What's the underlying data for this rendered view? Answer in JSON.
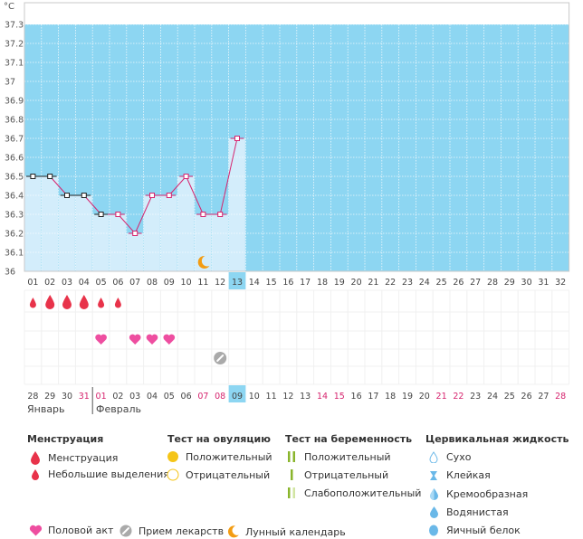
{
  "colors": {
    "sky": "#8dd6f2",
    "bar_fill": "#d3edfb",
    "bar_stroke": "#8dd6f2",
    "line": "#d6246e",
    "marker_pink": "#d6246e",
    "marker_black": "#222222",
    "today_bg": "#8dd6f2",
    "red_date": "#d6246e",
    "blood": "#e8334a",
    "heart": "#ee4ea0",
    "pill": "#aaaaaa",
    "moon": "#f39c12",
    "ovu_pos": "#f5c518",
    "preg_pos": "#8ab52c",
    "preg_weak": "#d2e5a3",
    "cervical": "#6ab8e8"
  },
  "chart_data": {
    "type": "line",
    "unit_label": "°C",
    "y_ticks": [
      "37.3",
      "37.2",
      "37.1",
      "37",
      "36.9",
      "36.8",
      "36.7",
      "36.6",
      "36.5",
      "36.4",
      "36.3",
      "36.2",
      "36.1",
      "36"
    ],
    "ylim": [
      36,
      37.3
    ],
    "cycle_days": [
      "01",
      "02",
      "03",
      "04",
      "05",
      "06",
      "07",
      "08",
      "09",
      "10",
      "11",
      "12",
      "13",
      "14",
      "15",
      "16",
      "17",
      "18",
      "19",
      "20",
      "21",
      "22",
      "23",
      "24",
      "25",
      "26",
      "27",
      "28",
      "29",
      "30",
      "31",
      "32"
    ],
    "current_day_index": 12,
    "temperatures": [
      36.5,
      36.5,
      36.4,
      36.4,
      36.3,
      36.3,
      36.2,
      36.4,
      36.4,
      36.5,
      36.3,
      36.3,
      36.7
    ],
    "marker_types": [
      "black",
      "black",
      "black",
      "black",
      "black",
      "pink",
      "pink",
      "pink",
      "pink",
      "pink",
      "pink",
      "pink",
      "pink"
    ],
    "dates": [
      "28",
      "29",
      "30",
      "31",
      "01",
      "02",
      "03",
      "04",
      "05",
      "06",
      "07",
      "08",
      "09",
      "10",
      "11",
      "12",
      "13",
      "14",
      "15",
      "16",
      "17",
      "18",
      "19",
      "20",
      "21",
      "22",
      "23",
      "24",
      "25",
      "26",
      "27",
      "28"
    ],
    "date_red": [
      false,
      false,
      false,
      true,
      true,
      false,
      false,
      false,
      false,
      false,
      true,
      true,
      false,
      false,
      false,
      false,
      false,
      true,
      true,
      false,
      false,
      false,
      false,
      false,
      true,
      true,
      false,
      false,
      false,
      false,
      false,
      true
    ],
    "months": [
      {
        "label": "Январь",
        "start_index": 0
      },
      {
        "label": "Февраль",
        "start_index": 4
      }
    ],
    "menstruation": [
      {
        "day": 0,
        "kind": "small"
      },
      {
        "day": 1,
        "kind": "big"
      },
      {
        "day": 2,
        "kind": "big"
      },
      {
        "day": 3,
        "kind": "big"
      },
      {
        "day": 4,
        "kind": "small"
      },
      {
        "day": 5,
        "kind": "small"
      }
    ],
    "intercourse_days": [
      4,
      6,
      7,
      8
    ],
    "medicine_days": [
      11
    ],
    "moon_days": [
      10
    ]
  },
  "legend": {
    "menstruation": {
      "title": "Менструация",
      "items": [
        "Менструация",
        "Небольшие выделения"
      ]
    },
    "ovulation": {
      "title": "Тест на овуляцию",
      "items": [
        "Положительный",
        "Отрицательный"
      ]
    },
    "pregnancy": {
      "title": "Тест на беременность",
      "items": [
        "Положительный",
        "Отрицательный",
        "Слабоположительный"
      ]
    },
    "cervical": {
      "title": "Цервикальная жидкость",
      "items": [
        "Сухо",
        "Клейкая",
        "Кремообразная",
        "Водянистая",
        "Яичный белок"
      ]
    },
    "other": [
      "Половой акт",
      "Прием лекарств",
      "Лунный календарь"
    ]
  }
}
